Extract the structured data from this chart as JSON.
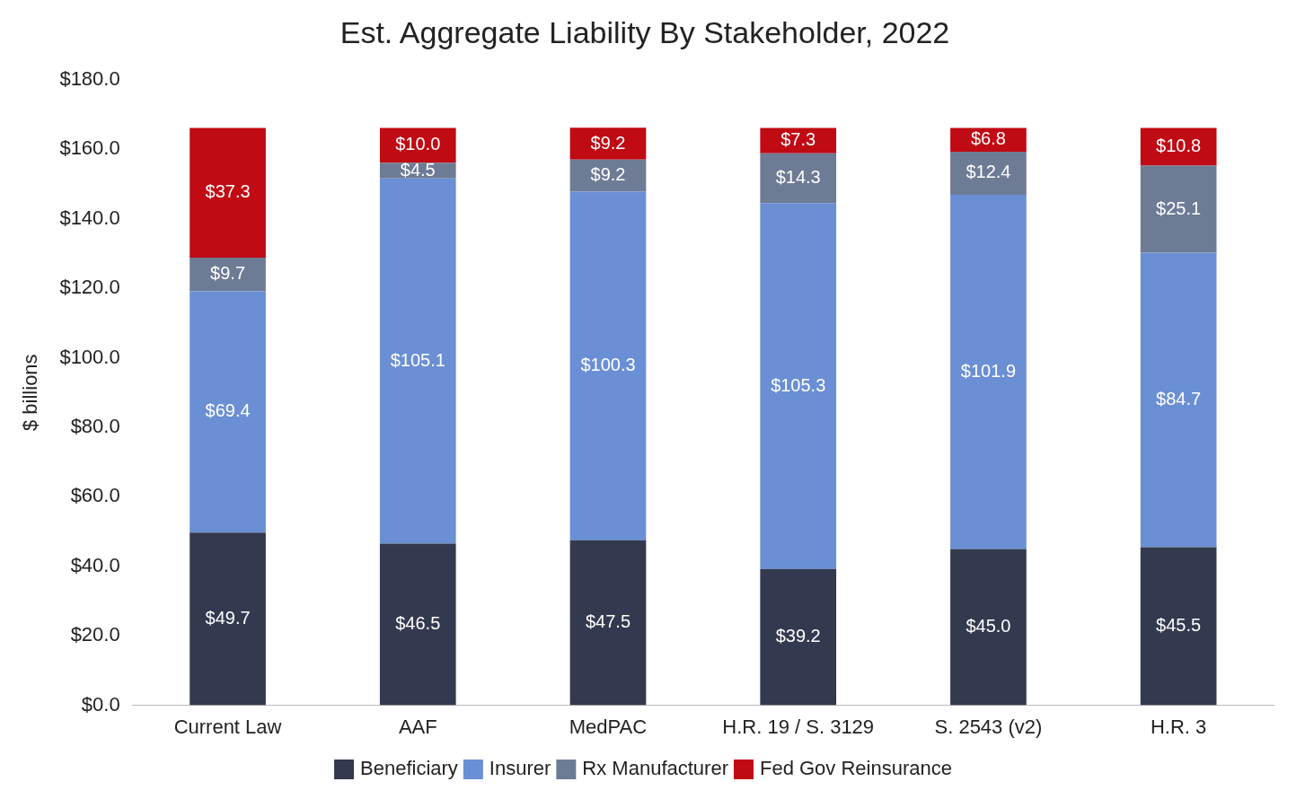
{
  "chart_data": {
    "type": "bar",
    "title": "Est. Aggregate Liability By Stakeholder, 2022",
    "ylabel": "$ billions",
    "stacked": true,
    "categories": [
      "Current Law",
      "AAF",
      "MedPAC",
      "H.R. 19 / S. 3129",
      "S. 2543 (v2)",
      "H.R. 3"
    ],
    "series": [
      {
        "name": "Beneficiary",
        "color": "#333a4f",
        "values": [
          49.7,
          46.5,
          47.5,
          39.2,
          45.0,
          45.5
        ],
        "value_labels": [
          "$49.7",
          "$46.5",
          "$47.5",
          "$39.2",
          "$45.0",
          "$45.5"
        ]
      },
      {
        "name": "Insurer",
        "color": "#6a8fd4",
        "values": [
          69.4,
          105.1,
          100.3,
          105.3,
          101.9,
          84.7
        ],
        "value_labels": [
          "$69.4",
          "$105.1",
          "$100.3",
          "$105.3",
          "$101.9",
          "$84.7"
        ]
      },
      {
        "name": "Rx Manufacturer",
        "color": "#6e7b95",
        "values": [
          9.7,
          4.5,
          9.2,
          14.3,
          12.4,
          25.1
        ],
        "value_labels": [
          "$9.7",
          "$4.5",
          "$9.2",
          "$14.3",
          "$12.4",
          "$25.1"
        ]
      },
      {
        "name": "Fed Gov Reinsurance",
        "color": "#c00a14",
        "values": [
          37.3,
          10.0,
          9.2,
          7.3,
          6.8,
          10.8
        ],
        "value_labels": [
          "$37.3",
          "$10.0",
          "$9.2",
          "$7.3",
          "$6.8",
          "$10.8"
        ]
      }
    ],
    "ylim": [
      0,
      180
    ],
    "yticks": [
      {
        "value": 0,
        "label": "$0.0"
      },
      {
        "value": 20,
        "label": "$20.0"
      },
      {
        "value": 40,
        "label": "$40.0"
      },
      {
        "value": 60,
        "label": "$60.0"
      },
      {
        "value": 80,
        "label": "$80.0"
      },
      {
        "value": 100,
        "label": "$100.0"
      },
      {
        "value": 120,
        "label": "$120.0"
      },
      {
        "value": 140,
        "label": "$140.0"
      },
      {
        "value": 160,
        "label": "$160.0"
      },
      {
        "value": 180,
        "label": "$180.0"
      }
    ],
    "grid": false,
    "legend": "bottom"
  }
}
